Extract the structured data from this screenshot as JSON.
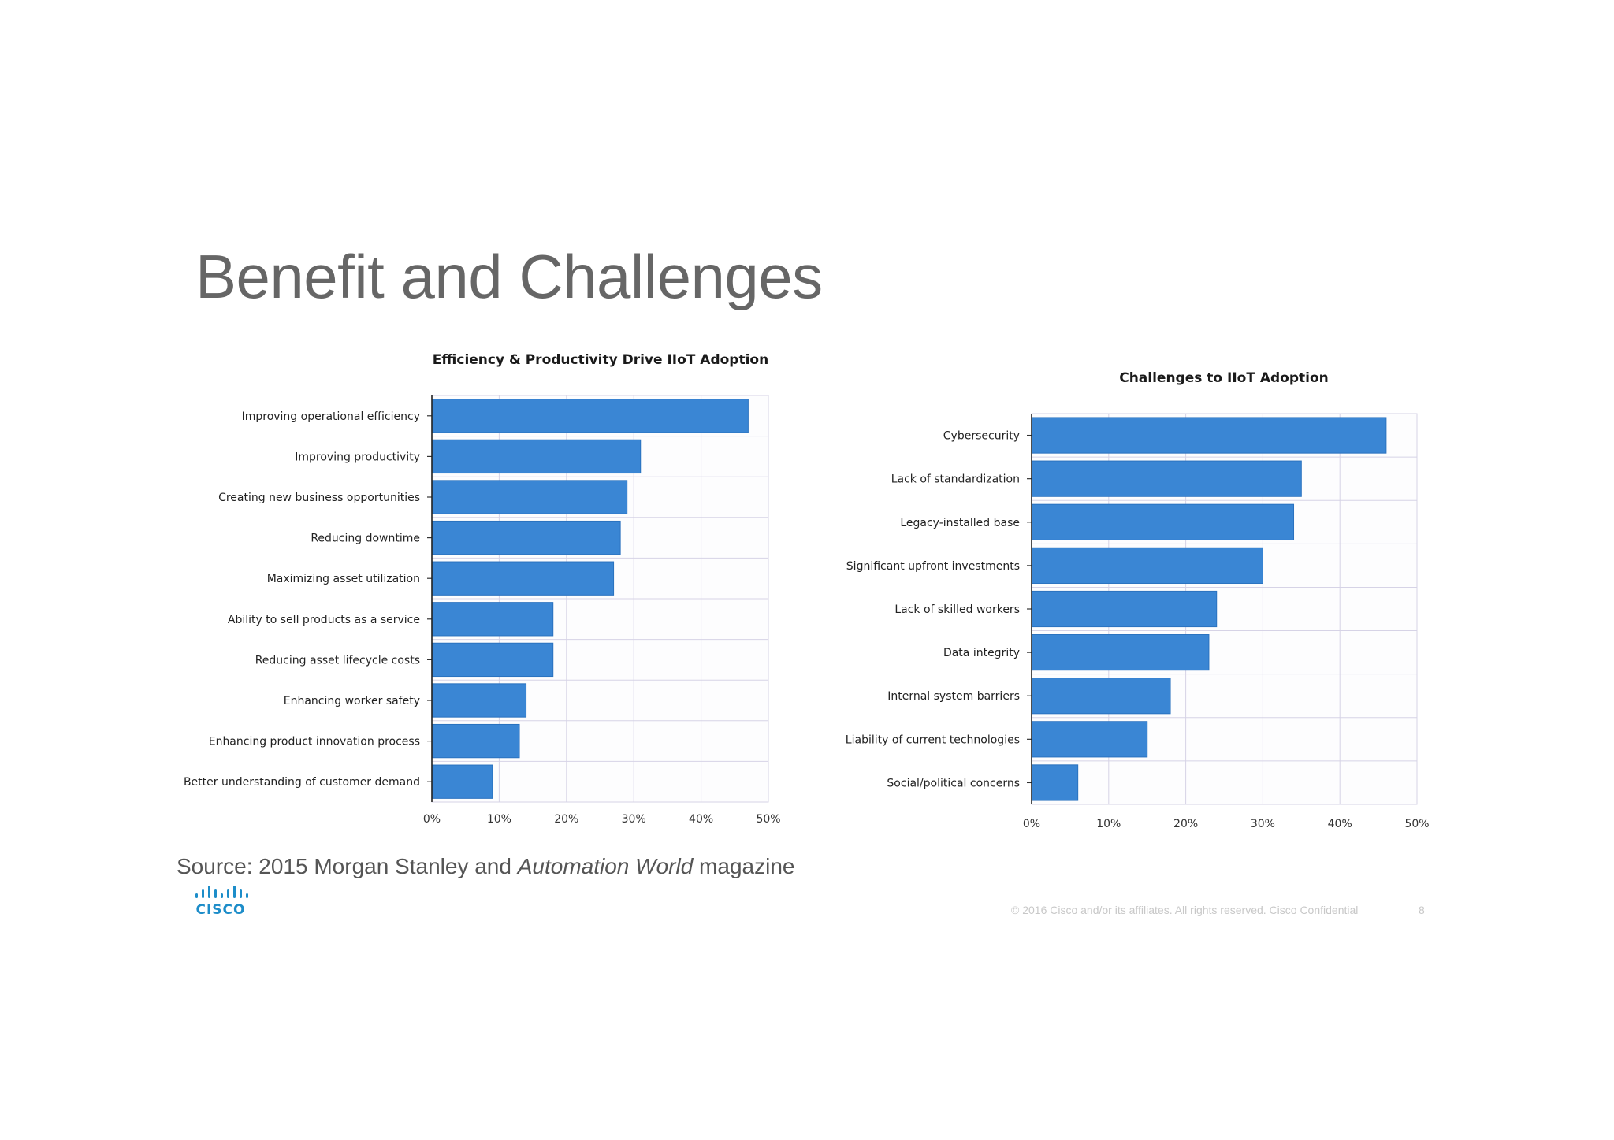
{
  "slide": {
    "title": "Benefit and Challenges",
    "source_prefix": "Source: 2015 Morgan Stanley and ",
    "source_italic": "Automation World",
    "source_suffix": " magazine",
    "logo_text": "CISCO",
    "footer_copyright": "© 2016  Cisco and/or its affiliates. All rights reserved.   Cisco Confidential",
    "page_number": "8"
  },
  "colors": {
    "bar": "#3a86d4",
    "bar_stroke": "#2a72bf",
    "grid": "#d6d3e6",
    "title_text": "#666666",
    "logo": "#1d8dc9"
  },
  "chart_data": [
    {
      "type": "bar",
      "orientation": "horizontal",
      "title": "Efficiency & Productivity Drive IIoT Adoption",
      "categories": [
        "Improving operational efficiency",
        "Improving productivity",
        "Creating new business opportunities",
        "Reducing downtime",
        "Maximizing asset utilization",
        "Ability to sell products as a service",
        "Reducing asset lifecycle costs",
        "Enhancing worker safety",
        "Enhancing product innovation process",
        "Better understanding of customer demand"
      ],
      "values": [
        47,
        31,
        29,
        28,
        27,
        18,
        18,
        14,
        13,
        9
      ],
      "xlim": [
        0,
        50
      ],
      "xticks": [
        "0%",
        "10%",
        "20%",
        "30%",
        "40%",
        "50%"
      ],
      "grid": true,
      "legend": "none"
    },
    {
      "type": "bar",
      "orientation": "horizontal",
      "title": "Challenges to IIoT Adoption",
      "categories": [
        "Cybersecurity",
        "Lack of standardization",
        "Legacy-installed base",
        "Significant upfront investments",
        "Lack of skilled workers",
        "Data integrity",
        "Internal system barriers",
        "Liability of current technologies",
        "Social/political concerns"
      ],
      "values": [
        46,
        35,
        34,
        30,
        24,
        23,
        18,
        15,
        6
      ],
      "xlim": [
        0,
        50
      ],
      "xticks": [
        "0%",
        "10%",
        "20%",
        "30%",
        "40%",
        "50%"
      ],
      "grid": true,
      "legend": "none"
    }
  ]
}
